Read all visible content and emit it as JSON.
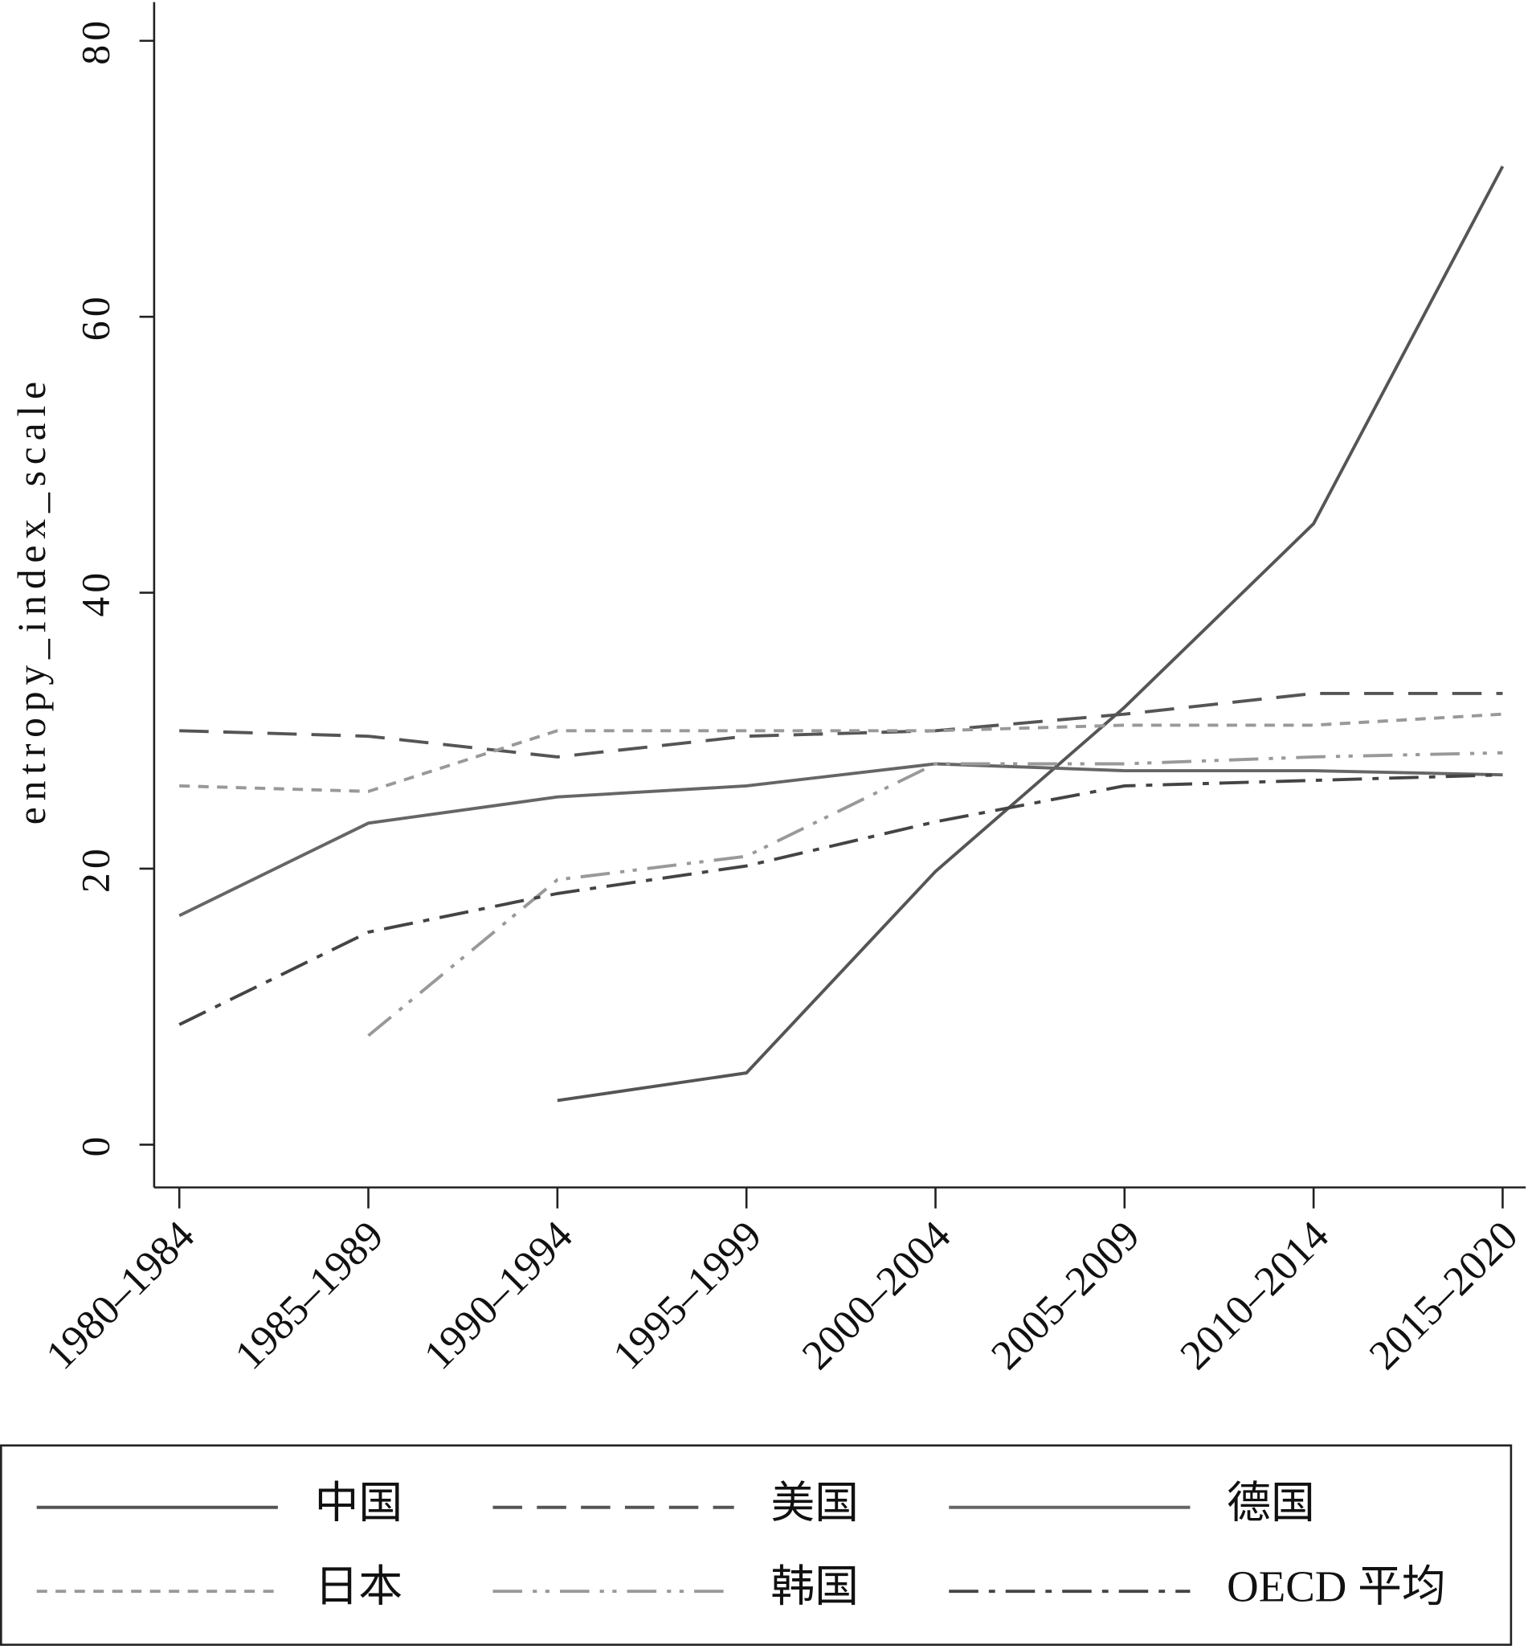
{
  "chart_data": {
    "type": "line",
    "y_label": "entropy_index_scale",
    "categories": [
      "1980–1984",
      "1985–1989",
      "1990–1994",
      "1995–1999",
      "2000–2004",
      "2005–2009",
      "2010–2014",
      "2015–2020"
    ],
    "ylim": [
      -3.1,
      82.8
    ],
    "yticks": [
      0,
      20,
      40,
      60,
      80
    ],
    "legend": "bottom",
    "series": [
      {
        "name": "中国",
        "color": "#555555",
        "style": "solid",
        "values": [
          null,
          null,
          3.2,
          5.2,
          19.8,
          31.7,
          45.0,
          70.9
        ]
      },
      {
        "name": "美国",
        "color": "#555555",
        "style": "dashed",
        "values": [
          30.0,
          29.6,
          28.1,
          29.6,
          30.0,
          31.2,
          32.7,
          32.7
        ]
      },
      {
        "name": "德国",
        "color": "#666666",
        "style": "solid",
        "values": [
          16.6,
          23.3,
          25.2,
          26.0,
          27.6,
          27.1,
          27.1,
          26.8
        ]
      },
      {
        "name": "日本",
        "color": "#999999",
        "style": "dotted",
        "values": [
          26.0,
          25.6,
          30.0,
          30.0,
          30.0,
          30.4,
          30.4,
          31.2
        ]
      },
      {
        "name": "韩国",
        "color": "#999999",
        "style": "dashdotdot",
        "values": [
          null,
          7.9,
          19.2,
          20.9,
          27.6,
          27.6,
          28.1,
          28.4
        ]
      },
      {
        "name": "OECD 平均",
        "color": "#444444",
        "style": "dashdot",
        "values": [
          8.7,
          15.4,
          18.2,
          20.2,
          23.4,
          26.0,
          26.4,
          26.8
        ]
      }
    ]
  }
}
